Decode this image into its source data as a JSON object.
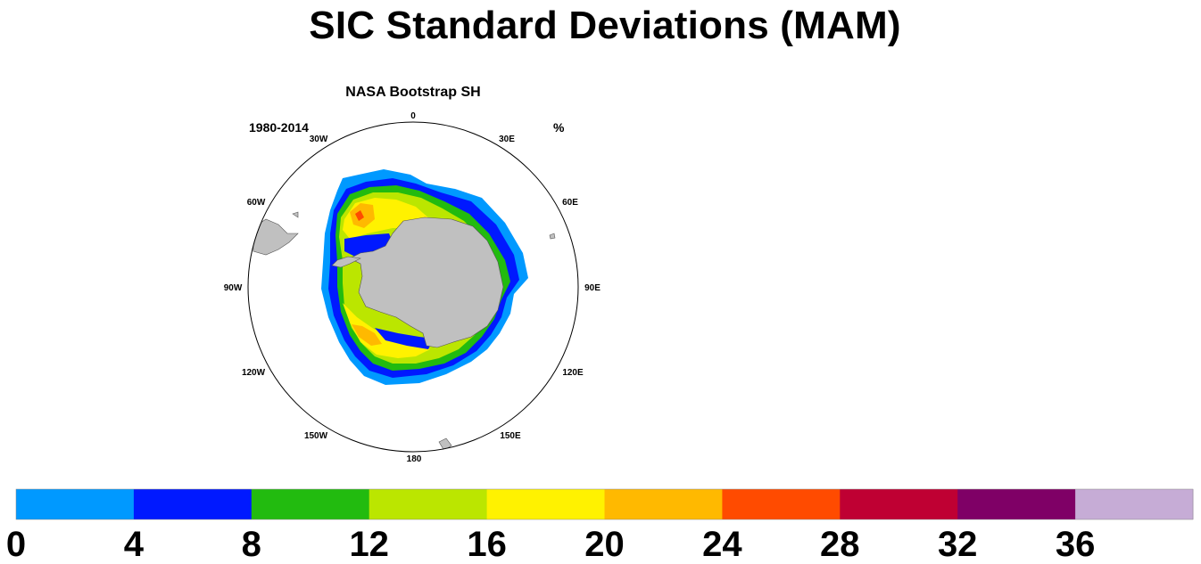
{
  "title": "SIC Standard Deviations (MAM)",
  "map": {
    "title": "NASA Bootstrap SH",
    "period": "1980-2014",
    "units": "%",
    "longitude_labels": [
      "0",
      "30E",
      "60E",
      "90E",
      "120E",
      "150E",
      "180",
      "150W",
      "120W",
      "90W",
      "60W",
      "30W"
    ],
    "land_color": "#c0c0c0",
    "no_data_color": "#ffffff"
  },
  "colorbar": {
    "colors": [
      "#0099ff",
      "#0019ff",
      "#22bb0f",
      "#bbe600",
      "#fff200",
      "#ffb900",
      "#ff4b00",
      "#bf0033",
      "#7f0066",
      "#c6acd6"
    ],
    "tick_labels": [
      "0",
      "4",
      "8",
      "12",
      "16",
      "20",
      "24",
      "28",
      "32",
      "36"
    ]
  }
}
